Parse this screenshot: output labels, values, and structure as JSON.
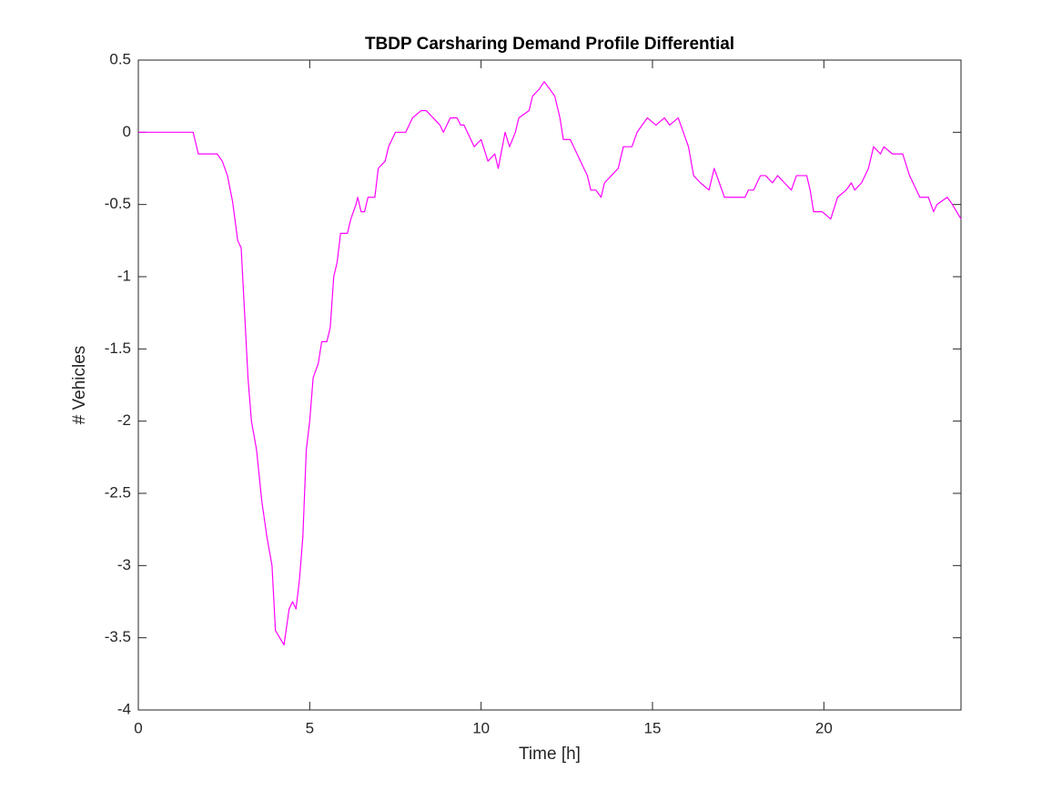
{
  "chart_data": {
    "type": "line",
    "title": "TBDP Carsharing Demand Profile Differential",
    "x_label": "Time [h]",
    "y_label": "# Vehicles",
    "color": "#ff00ff",
    "xlim": [
      0,
      24
    ],
    "xticks": [
      0,
      5,
      10,
      15,
      20
    ],
    "ylim": [
      -4,
      0.5
    ],
    "yticks": [
      -4,
      -3.5,
      -3,
      -2.5,
      -2,
      -1.5,
      -1,
      -0.5,
      0,
      0.5
    ],
    "grid": false,
    "x": [
      0,
      1.6,
      1.75,
      2.3,
      2.45,
      2.6,
      2.75,
      2.9,
      3.0,
      3.1,
      3.2,
      3.3,
      3.45,
      3.6,
      3.75,
      3.9,
      4.0,
      4.25,
      4.4,
      4.5,
      4.6,
      4.7,
      4.8,
      4.9,
      5.0,
      5.1,
      5.25,
      5.35,
      5.5,
      5.6,
      5.7,
      5.8,
      5.9,
      6.1,
      6.2,
      6.35,
      6.4,
      6.5,
      6.6,
      6.7,
      6.9,
      7.0,
      7.2,
      7.3,
      7.5,
      7.8,
      7.9,
      8.0,
      8.25,
      8.4,
      8.6,
      8.8,
      8.9,
      9.0,
      9.1,
      9.3,
      9.4,
      9.5,
      9.8,
      10.0,
      10.2,
      10.4,
      10.5,
      10.7,
      10.83,
      11.0,
      11.1,
      11.4,
      11.5,
      11.7,
      11.84,
      12.0,
      12.15,
      12.3,
      12.4,
      12.6,
      12.8,
      13.1,
      13.2,
      13.35,
      13.5,
      13.6,
      13.8,
      14.0,
      14.15,
      14.4,
      14.55,
      14.7,
      14.85,
      15.1,
      15.35,
      15.5,
      15.75,
      15.9,
      16.05,
      16.2,
      16.4,
      16.65,
      16.8,
      16.95,
      17.1,
      17.7,
      17.8,
      17.95,
      18.15,
      18.3,
      18.5,
      18.65,
      18.85,
      19.05,
      19.2,
      19.3,
      19.5,
      19.6,
      19.7,
      19.95,
      20.2,
      20.4,
      20.65,
      20.8,
      20.9,
      21.1,
      21.3,
      21.45,
      21.65,
      21.75,
      22.0,
      22.3,
      22.5,
      22.8,
      23.05,
      23.2,
      23.3,
      23.6,
      23.75,
      24
    ],
    "values": [
      0,
      0,
      -0.15,
      -0.15,
      -0.2,
      -0.3,
      -0.48,
      -0.75,
      -0.8,
      -1.25,
      -1.7,
      -2.0,
      -2.2,
      -2.55,
      -2.8,
      -3.0,
      -3.45,
      -3.55,
      -3.3,
      -3.25,
      -3.3,
      -3.1,
      -2.8,
      -2.2,
      -2.0,
      -1.7,
      -1.6,
      -1.45,
      -1.45,
      -1.35,
      -1.0,
      -0.9,
      -0.7,
      -0.7,
      -0.6,
      -0.5,
      -0.45,
      -0.55,
      -0.55,
      -0.45,
      -0.45,
      -0.25,
      -0.2,
      -0.1,
      0,
      0,
      0.05,
      0.1,
      0.15,
      0.15,
      0.1,
      0.05,
      0,
      0.05,
      0.1,
      0.1,
      0.05,
      0.05,
      -0.1,
      -0.05,
      -0.2,
      -0.15,
      -0.25,
      0,
      -0.1,
      0,
      0.1,
      0.15,
      0.25,
      0.3,
      0.35,
      0.3,
      0.25,
      0.1,
      -0.05,
      -0.05,
      -0.15,
      -0.3,
      -0.4,
      -0.4,
      -0.45,
      -0.35,
      -0.3,
      -0.25,
      -0.1,
      -0.1,
      0,
      0.05,
      0.1,
      0.05,
      0.1,
      0.05,
      0.1,
      0,
      -0.1,
      -0.3,
      -0.35,
      -0.4,
      -0.25,
      -0.35,
      -0.45,
      -0.45,
      -0.4,
      -0.4,
      -0.3,
      -0.3,
      -0.35,
      -0.3,
      -0.35,
      -0.4,
      -0.3,
      -0.3,
      -0.3,
      -0.4,
      -0.55,
      -0.55,
      -0.6,
      -0.45,
      -0.4,
      -0.35,
      -0.4,
      -0.35,
      -0.25,
      -0.1,
      -0.15,
      -0.1,
      -0.15,
      -0.15,
      -0.3,
      -0.45,
      -0.45,
      -0.55,
      -0.5,
      -0.45,
      -0.5,
      -0.6
    ]
  }
}
